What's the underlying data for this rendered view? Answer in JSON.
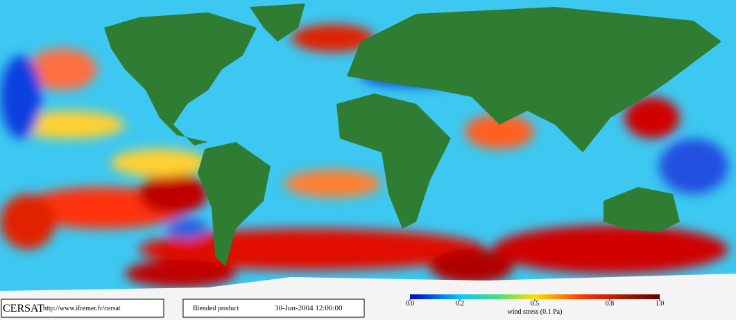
{
  "logo": "CERSAT",
  "url": "http://www.ifremer.fr/cersat",
  "product": "Blended product",
  "datetime": "30-Jun-2004 12:00:00",
  "colorbar": {
    "label": "wind stress (0.1 Pa)",
    "lim": [
      0,
      1
    ],
    "ticks": [
      {
        "value": 0,
        "label": "0.0"
      },
      0.2,
      0.5,
      0.8,
      {
        "value": 1,
        "label": "1.0"
      }
    ]
  }
}
